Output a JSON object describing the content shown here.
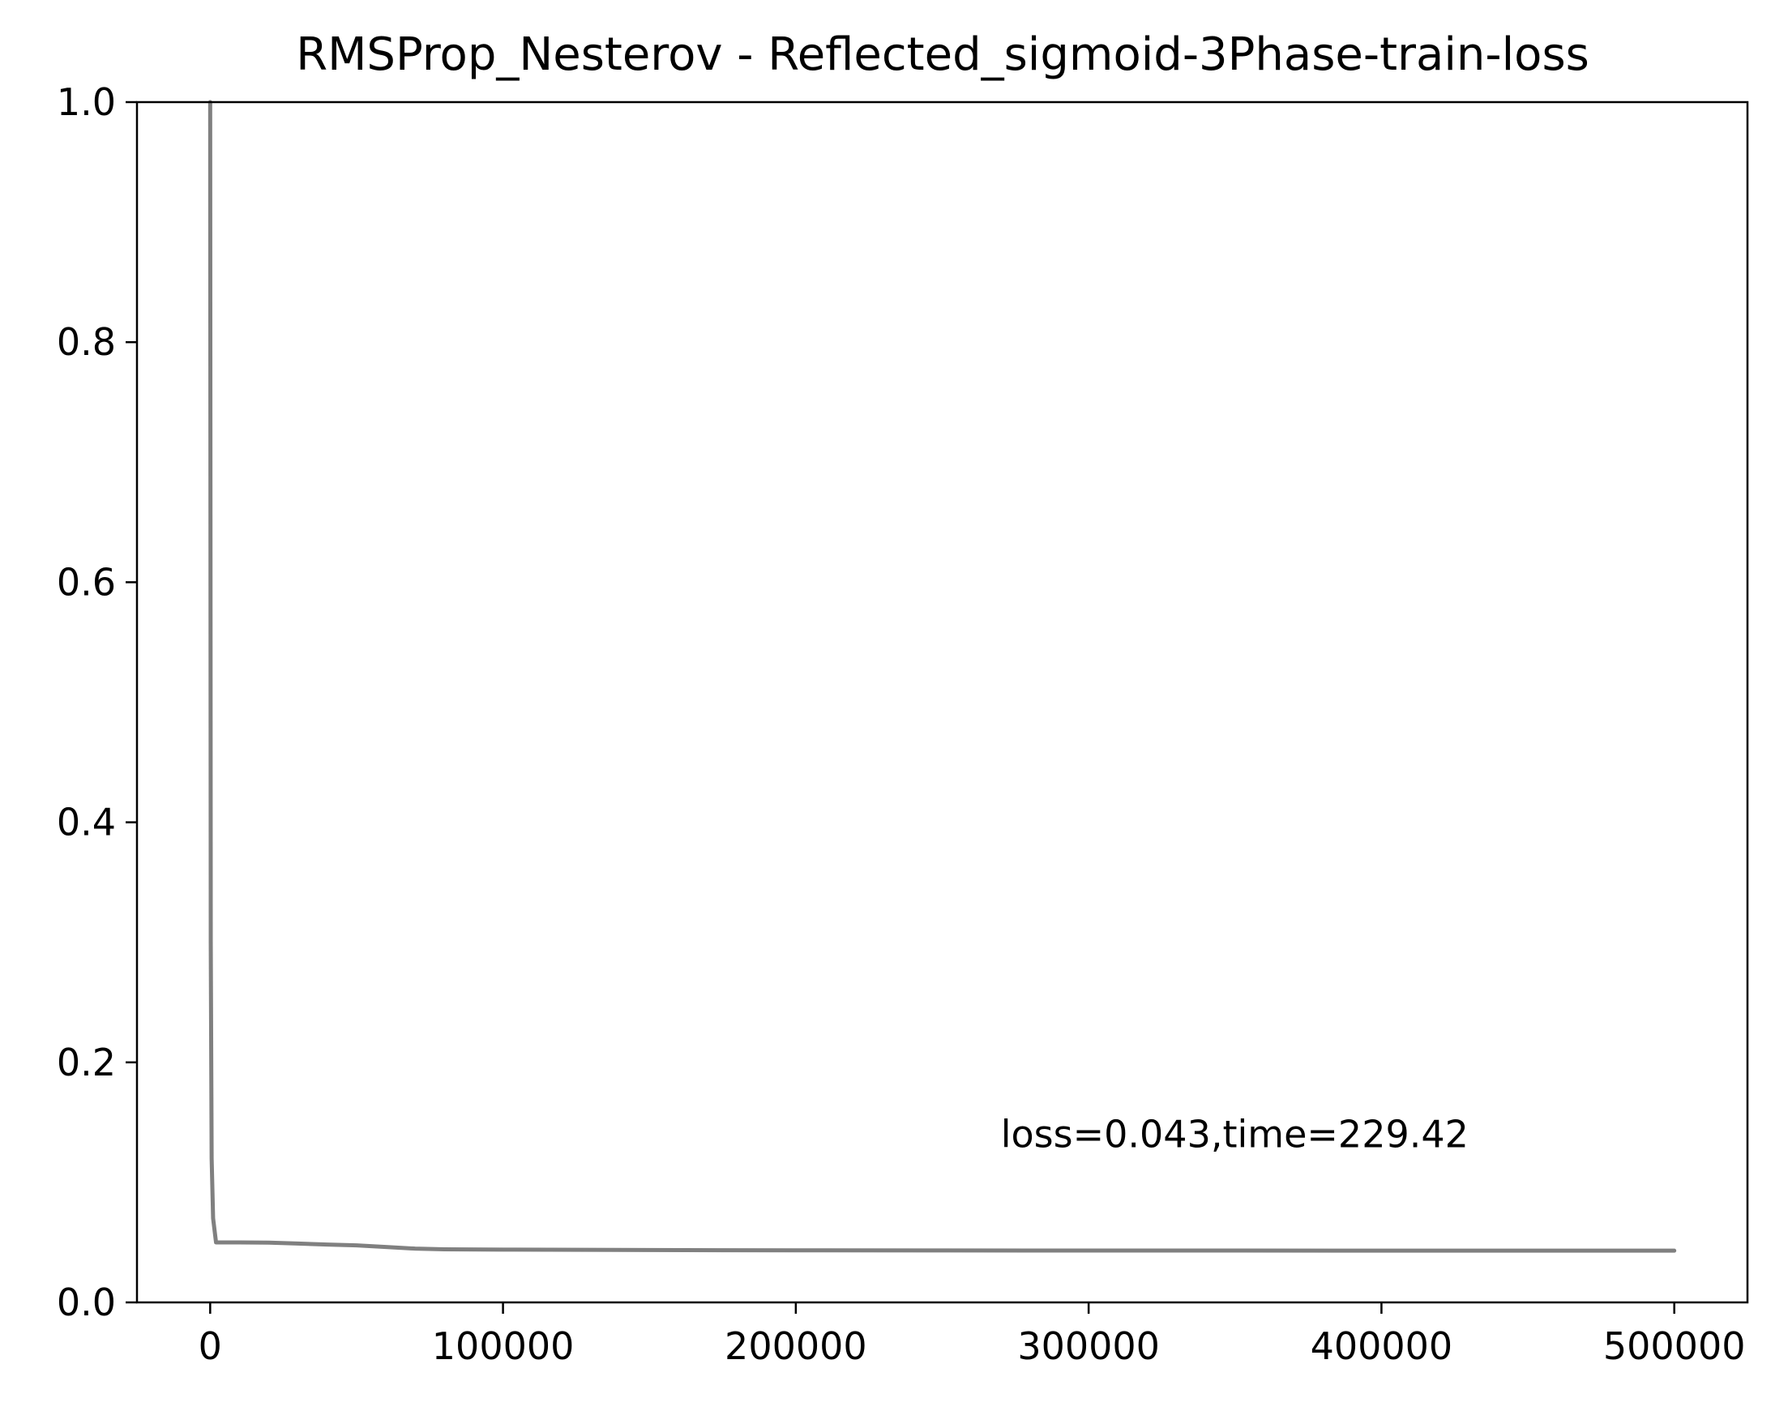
{
  "chart_data": {
    "type": "line",
    "title": "RMSProp_Nesterov - Reflected_sigmoid-3Phase-train-loss",
    "xlabel": "",
    "ylabel": "",
    "xlim": [
      -25000,
      525000
    ],
    "ylim": [
      0,
      1.0
    ],
    "x_ticks": [
      0,
      100000,
      200000,
      300000,
      400000,
      500000
    ],
    "x_tick_labels": [
      "0",
      "100000",
      "200000",
      "300000",
      "400000",
      "500000"
    ],
    "y_ticks": [
      0.0,
      0.2,
      0.4,
      0.6,
      0.8,
      1.0
    ],
    "y_tick_labels": [
      "0.0",
      "0.2",
      "0.4",
      "0.6",
      "0.8",
      "1.0"
    ],
    "grid": false,
    "series": [
      {
        "color": "#808080",
        "x": [
          0,
          200,
          500,
          1000,
          2000,
          5000,
          10000,
          20000,
          30000,
          40000,
          50000,
          60000,
          70000,
          80000,
          100000,
          150000,
          200000,
          250000,
          300000,
          350000,
          400000,
          450000,
          500000
        ],
        "y": [
          1.0,
          0.3,
          0.12,
          0.07,
          0.05,
          0.05,
          0.05,
          0.0498,
          0.049,
          0.0482,
          0.0475,
          0.0462,
          0.0448,
          0.0442,
          0.044,
          0.0436,
          0.0434,
          0.0433,
          0.0432,
          0.0432,
          0.0431,
          0.0431,
          0.0431
        ]
      }
    ],
    "annotations": [
      {
        "text": "loss=0.043,time=229.42",
        "x": 270000,
        "y": 0.14
      }
    ]
  }
}
